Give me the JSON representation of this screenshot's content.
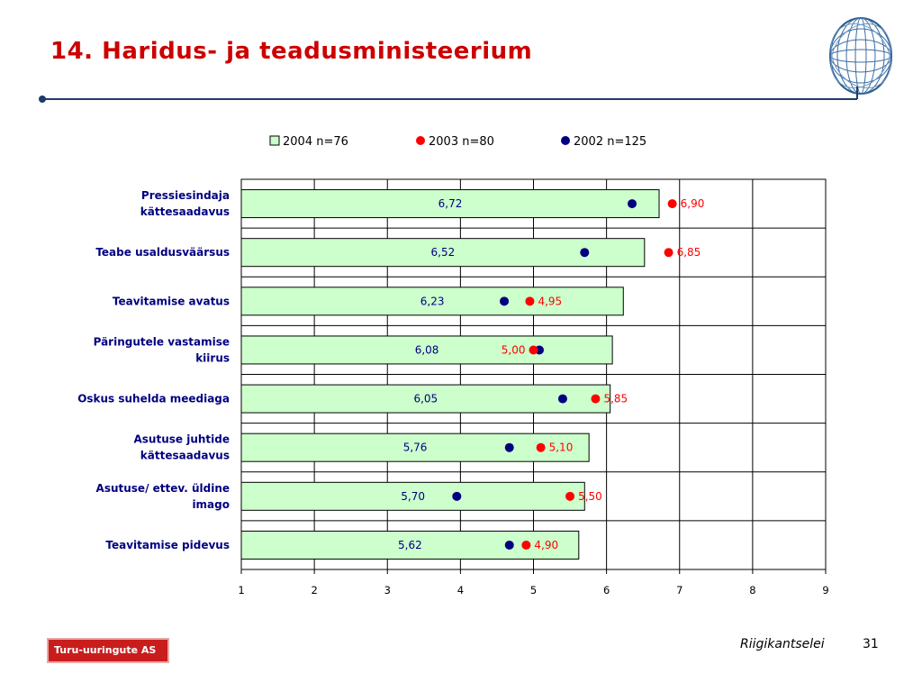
{
  "page": {
    "title": "14. Haridus- ja teadusministeerium",
    "footer_text": "Riigikantselei",
    "page_number": "31",
    "logo_text": "Turu-uuringute AS"
  },
  "colors": {
    "title": "#cc0000",
    "bar_fill": "#ccffcc",
    "bar_stroke": "#000000",
    "marker_2003": "#ff0000",
    "marker_2002": "#000080",
    "label_2003": "#ff0000",
    "label_2004": "#000080",
    "rule": "#1f3a6b"
  },
  "chart_data": {
    "type": "bar",
    "orientation": "horizontal",
    "xlim": [
      1,
      9
    ],
    "xticks": [
      "1",
      "2",
      "3",
      "4",
      "5",
      "6",
      "7",
      "8",
      "9"
    ],
    "grid": true,
    "legend_position": "top",
    "legend": [
      {
        "label": "2004 n=76",
        "marker": "square"
      },
      {
        "label": "2003 n=80",
        "marker": "dot"
      },
      {
        "label": "2002 n=125",
        "marker": "dot"
      }
    ],
    "categories": [
      [
        "Pressiesindaja",
        "kättesaadavus"
      ],
      [
        "Teabe usaldusväärsus"
      ],
      [
        "Teavitamise avatus"
      ],
      [
        "Päringutele vastamise",
        "kiirus"
      ],
      [
        "Oskus suhelda meediaga"
      ],
      [
        "Asutuse juhtide",
        "kättesaadavus"
      ],
      [
        "Asutuse/ ettev. üldine",
        "imago"
      ],
      [
        "Teavitamise pidevus"
      ]
    ],
    "series": [
      {
        "name": "2004 n=76",
        "values": [
          6.72,
          6.52,
          6.23,
          6.08,
          6.05,
          5.76,
          5.7,
          5.62
        ],
        "labels": [
          "6,72",
          "6,52",
          "6,23",
          "6,08",
          "6,05",
          "5,76",
          "5,70",
          "5,62"
        ]
      },
      {
        "name": "2003 n=80",
        "values": [
          6.9,
          6.85,
          4.95,
          5.0,
          5.85,
          5.1,
          5.5,
          4.9
        ],
        "labels": [
          "6,90",
          "6,85",
          "4,95",
          "5,00",
          "5,85",
          "5,10",
          "5,50",
          "4,90"
        ]
      },
      {
        "name": "2002 n=125",
        "values": [
          6.35,
          5.7,
          4.6,
          5.08,
          5.4,
          4.67,
          3.95,
          4.67
        ]
      }
    ]
  }
}
